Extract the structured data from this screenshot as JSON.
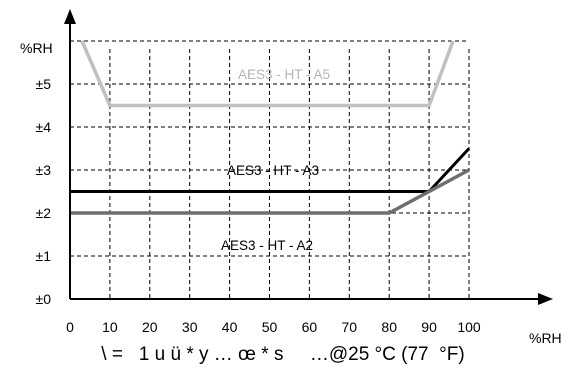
{
  "chart_data": {
    "type": "line",
    "xlabel": "%RH",
    "ylabel": "%RH",
    "x_ticks": [
      "0",
      "10",
      "20",
      "30",
      "40",
      "50",
      "60",
      "70",
      "80",
      "90",
      "100"
    ],
    "y_ticks": [
      "±0",
      "±1",
      "±2",
      "±3",
      "±4",
      "±5"
    ],
    "xlim": [
      0,
      100
    ],
    "ylim": [
      0,
      6
    ],
    "grid": true,
    "caption": "\\ =   1 u ü * y … œ * s     …@25 °C (77  °F)",
    "series": [
      {
        "name": "AES3 - HT - A5",
        "color": "#c0c0c0",
        "x": [
          3,
          10,
          90,
          96
        ],
        "y": [
          6,
          4.5,
          4.5,
          6
        ]
      },
      {
        "name": "AES3 - HT - A3",
        "color": "#000000",
        "x": [
          0,
          90,
          100
        ],
        "y": [
          2.5,
          2.5,
          3.5
        ]
      },
      {
        "name": "AES3 - HT - A2",
        "color": "#6e6e6e",
        "x": [
          0,
          80,
          100
        ],
        "y": [
          2,
          2,
          3
        ]
      }
    ]
  }
}
